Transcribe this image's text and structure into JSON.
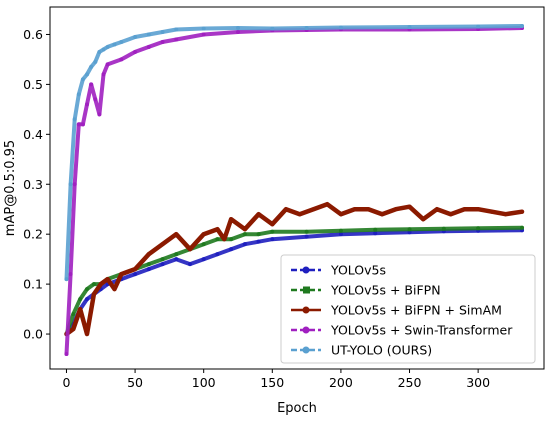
{
  "chart_data": {
    "type": "line",
    "xlabel": "Epoch",
    "ylabel": "mAP@0.5:0.95",
    "xlim": [
      -12,
      348
    ],
    "ylim": [
      -0.07,
      0.655
    ],
    "xticks": [
      0,
      50,
      100,
      150,
      200,
      250,
      300
    ],
    "yticks": [
      0.0,
      0.1,
      0.2,
      0.3,
      0.4,
      0.5,
      0.6
    ],
    "ytick_labels": [
      "0.0",
      "0.1",
      "0.2",
      "0.3",
      "0.4",
      "0.5",
      "0.6"
    ],
    "grid": false,
    "legend_position": "lower-right",
    "series": [
      {
        "name": "YOLOv5s",
        "color": "#1f1fbf",
        "style": "dashed-dot-marker",
        "x": [
          0,
          5,
          10,
          15,
          20,
          25,
          30,
          40,
          50,
          60,
          70,
          80,
          90,
          100,
          110,
          120,
          130,
          140,
          150,
          175,
          200,
          225,
          250,
          275,
          300,
          332
        ],
        "y": [
          0.0,
          0.02,
          0.05,
          0.07,
          0.08,
          0.09,
          0.1,
          0.11,
          0.12,
          0.13,
          0.14,
          0.15,
          0.14,
          0.15,
          0.16,
          0.17,
          0.18,
          0.185,
          0.19,
          0.195,
          0.2,
          0.202,
          0.204,
          0.206,
          0.207,
          0.208
        ]
      },
      {
        "name": "YOLOv5s + BiFPN",
        "color": "#1f7a1f",
        "style": "dashed-square-marker",
        "x": [
          0,
          5,
          10,
          15,
          20,
          25,
          30,
          40,
          50,
          60,
          70,
          80,
          90,
          100,
          110,
          120,
          130,
          140,
          150,
          175,
          200,
          225,
          250,
          275,
          300,
          332
        ],
        "y": [
          0.0,
          0.04,
          0.07,
          0.09,
          0.1,
          0.1,
          0.11,
          0.12,
          0.13,
          0.14,
          0.15,
          0.16,
          0.17,
          0.18,
          0.19,
          0.19,
          0.2,
          0.2,
          0.205,
          0.205,
          0.207,
          0.209,
          0.21,
          0.211,
          0.212,
          0.213
        ]
      },
      {
        "name": "YOLOv5s + BiFPN + SimAM",
        "color": "#8b1a00",
        "style": "solid-round-marker",
        "x": [
          0,
          5,
          10,
          15,
          20,
          25,
          30,
          35,
          40,
          50,
          60,
          70,
          80,
          90,
          100,
          110,
          115,
          120,
          130,
          140,
          150,
          160,
          170,
          180,
          190,
          200,
          210,
          220,
          230,
          240,
          250,
          260,
          270,
          280,
          290,
          300,
          310,
          320,
          332
        ],
        "y": [
          0.0,
          0.01,
          0.05,
          0.0,
          0.08,
          0.1,
          0.11,
          0.09,
          0.12,
          0.13,
          0.16,
          0.18,
          0.2,
          0.17,
          0.2,
          0.21,
          0.19,
          0.23,
          0.21,
          0.24,
          0.22,
          0.25,
          0.24,
          0.25,
          0.26,
          0.24,
          0.25,
          0.25,
          0.24,
          0.25,
          0.255,
          0.23,
          0.25,
          0.24,
          0.25,
          0.25,
          0.245,
          0.24,
          0.245
        ]
      },
      {
        "name": "YOLOv5s + Swin-Transformer",
        "color": "#a020c0",
        "style": "dashed-dot-marker",
        "x": [
          0,
          3,
          6,
          9,
          12,
          15,
          18,
          21,
          24,
          27,
          30,
          40,
          50,
          60,
          70,
          80,
          100,
          125,
          150,
          175,
          200,
          250,
          300,
          332
        ],
        "y": [
          -0.04,
          0.12,
          0.3,
          0.42,
          0.42,
          0.46,
          0.5,
          0.47,
          0.44,
          0.52,
          0.54,
          0.55,
          0.565,
          0.575,
          0.585,
          0.59,
          0.6,
          0.605,
          0.608,
          0.609,
          0.61,
          0.61,
          0.611,
          0.613
        ]
      },
      {
        "name": "UT-YOLO (OURS)",
        "color": "#5aa0d0",
        "style": "dashed-dot-marker",
        "x": [
          0,
          3,
          6,
          9,
          12,
          15,
          18,
          21,
          24,
          27,
          30,
          35,
          40,
          50,
          60,
          70,
          80,
          100,
          125,
          150,
          175,
          200,
          250,
          300,
          332
        ],
        "y": [
          0.11,
          0.3,
          0.43,
          0.48,
          0.51,
          0.52,
          0.535,
          0.545,
          0.565,
          0.57,
          0.575,
          0.58,
          0.585,
          0.595,
          0.6,
          0.605,
          0.61,
          0.612,
          0.613,
          0.612,
          0.613,
          0.614,
          0.615,
          0.616,
          0.617
        ]
      }
    ]
  }
}
